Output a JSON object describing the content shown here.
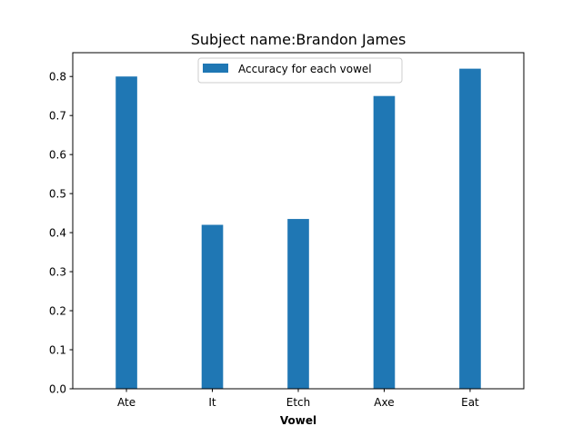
{
  "chart_data": {
    "type": "bar",
    "title": "Subject name:Brandon James",
    "xlabel": "Vowel",
    "ylabel": "",
    "categories": [
      "Ate",
      "It",
      "Etch",
      "Axe",
      "Eat"
    ],
    "series": [
      {
        "name": "Accuracy for each vowel",
        "values": [
          0.8,
          0.42,
          0.435,
          0.75,
          0.82
        ],
        "color": "#1f77b4"
      }
    ],
    "ylim": [
      0,
      0.861
    ],
    "yticks": [
      "0.0",
      "0.1",
      "0.2",
      "0.3",
      "0.4",
      "0.5",
      "0.6",
      "0.7",
      "0.8"
    ],
    "grid": false,
    "legend_position": "top-center"
  }
}
